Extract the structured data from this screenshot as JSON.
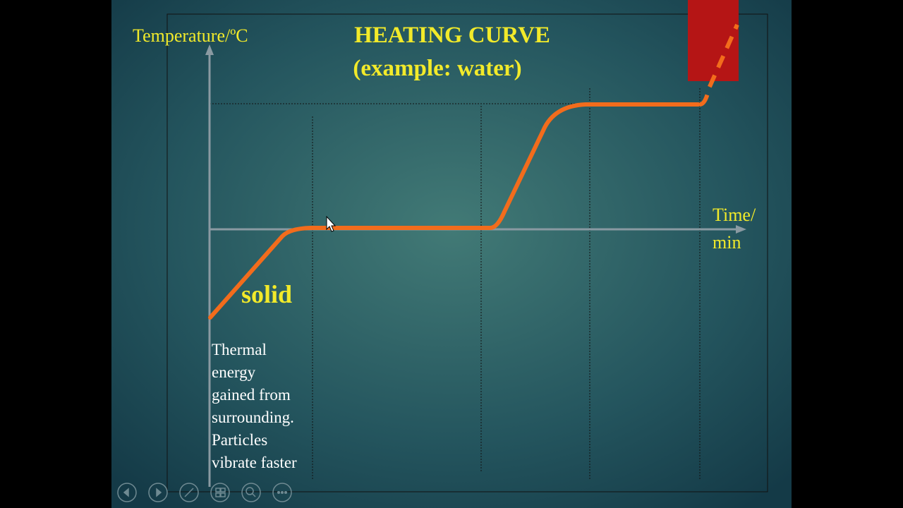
{
  "slide": {
    "title": [
      "HEATING CURVE",
      "(example: water)"
    ],
    "y_axis_label": "Temperature/ºC",
    "x_axis_label": [
      "Time/",
      "min"
    ],
    "phase_label": "solid",
    "description": [
      "Thermal",
      "energy",
      "gained from",
      "surrounding.",
      "Particles",
      "vibrate faster"
    ]
  }
}
